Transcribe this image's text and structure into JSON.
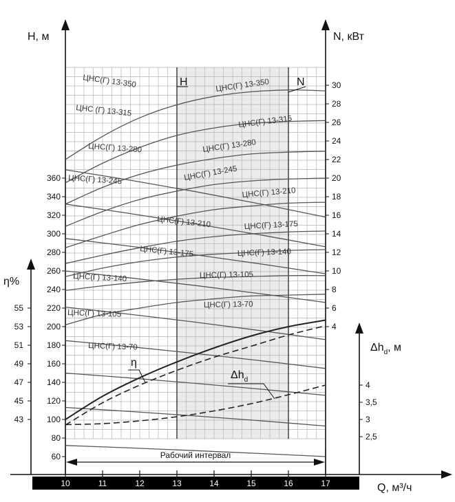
{
  "chart_data": {
    "type": "line",
    "x_axis": {
      "title": "Q, м³/ч",
      "range": [
        10,
        17
      ],
      "ticks": [
        "10",
        "11",
        "12",
        "13",
        "14",
        "15",
        "16",
        "17"
      ]
    },
    "h_axis": {
      "title": "H, м",
      "range": [
        80,
        380
      ],
      "ticks": [
        "60",
        "80",
        "100",
        "120",
        "140",
        "160",
        "180",
        "200",
        "220",
        "240",
        "260",
        "280",
        "300",
        "320",
        "340",
        "360"
      ]
    },
    "n_axis": {
      "title": "N, кВт",
      "range": [
        4,
        30
      ],
      "ticks": [
        "4",
        "6",
        "8",
        "10",
        "12",
        "14",
        "16",
        "18",
        "20",
        "22",
        "24",
        "26",
        "28",
        "30"
      ]
    },
    "eta_axis": {
      "title": "η%",
      "ticks": [
        "43",
        "45",
        "47",
        "49",
        "51",
        "53",
        "55"
      ]
    },
    "dh_axis": {
      "title": "Δh",
      "title_sub": "d",
      "title_unit": ", м",
      "ticks": [
        "2,5",
        "3",
        "3,5",
        "4"
      ]
    },
    "working_interval": {
      "label": "Рабочий интервал",
      "range": [
        13,
        16
      ]
    },
    "marker_labels": {
      "h": "H",
      "n": "N",
      "eta": "η",
      "dh": "Δh",
      "dh_sub": "d"
    },
    "head_curves": [
      {
        "name": "ЦНС(Г) 13-350",
        "x": [
          10,
          17
        ],
        "y": [
          369,
          318
        ]
      },
      {
        "name": "ЦНС (Г) 13-315",
        "x": [
          10,
          17
        ],
        "y": [
          332,
          286
        ]
      },
      {
        "name": "ЦНС(Г) 13-280",
        "x": [
          10,
          17
        ],
        "y": [
          295,
          257
        ]
      },
      {
        "name": "ЦНС(Г) 13-245",
        "x": [
          10,
          17
        ],
        "y": [
          260,
          226
        ]
      },
      {
        "name": "ЦНС(Г) 13-210",
        "x": [
          10,
          17
        ],
        "y": [
          221,
          186
        ]
      },
      {
        "name": "ЦНС(Г) 13-175",
        "x": [
          10,
          17
        ],
        "y": [
          185,
          155
        ]
      },
      {
        "name": "ЦНС(Г) 13-140",
        "x": [
          10,
          17
        ],
        "y": [
          150,
          126
        ]
      },
      {
        "name": "ЦНС(Г) 13-105",
        "x": [
          10,
          17
        ],
        "y": [
          113,
          93
        ]
      },
      {
        "name": "ЦНС(Г) 13-70",
        "x": [
          10,
          17
        ],
        "y": [
          72,
          60
        ]
      }
    ],
    "power_curves": [
      {
        "name": "ЦНС(Г) 13-350",
        "x": [
          10,
          11,
          12,
          13,
          14,
          15,
          16,
          17
        ],
        "y": [
          22.0,
          24.5,
          26.5,
          27.9,
          28.8,
          29.3,
          29.5,
          29.4
        ]
      },
      {
        "name": "ЦНС(Г) 13-315",
        "x": [
          10,
          11,
          12,
          13,
          14,
          15,
          16,
          17
        ],
        "y": [
          19.5,
          21.6,
          23.3,
          24.6,
          25.4,
          25.9,
          26.1,
          26.2
        ]
      },
      {
        "name": "ЦНС(Г) 13-280",
        "x": [
          10,
          11,
          12,
          13,
          14,
          15,
          16,
          17
        ],
        "y": [
          17.2,
          19.0,
          20.4,
          21.4,
          22.1,
          22.6,
          22.8,
          22.9
        ]
      },
      {
        "name": "ЦНС(Г) 13-245",
        "x": [
          10,
          11,
          12,
          13,
          14,
          15,
          16,
          17
        ],
        "y": [
          14.8,
          16.4,
          17.7,
          18.6,
          19.3,
          19.7,
          19.9,
          20.0
        ]
      },
      {
        "name": "ЦНС(Г) 13-210",
        "x": [
          10,
          11,
          12,
          13,
          14,
          15,
          16,
          17
        ],
        "y": [
          12.5,
          13.8,
          15.0,
          15.9,
          16.6,
          17.0,
          17.3,
          17.4
        ]
      },
      {
        "name": "ЦНС(Г) 13-175",
        "x": [
          10,
          11,
          12,
          13,
          14,
          15,
          16,
          17
        ],
        "y": [
          10.8,
          11.7,
          12.5,
          13.2,
          13.7,
          14.0,
          14.2,
          14.3
        ]
      },
      {
        "name": "ЦНС(Г) 13-140",
        "x": [
          10,
          11,
          12,
          13,
          14,
          15,
          16,
          17
        ],
        "y": [
          9.4,
          10.3,
          11.0,
          11.5,
          11.8,
          12.0,
          12.2,
          12.3
        ]
      },
      {
        "name": "ЦНС(Г) 13-105",
        "x": [
          10,
          11,
          12,
          13,
          14,
          15,
          16,
          17
        ],
        "y": [
          7.9,
          8.4,
          8.8,
          9.1,
          9.3,
          9.4,
          9.5,
          9.5
        ]
      },
      {
        "name": "ЦНС(Г) 13-70",
        "x": [
          10,
          11,
          12,
          13,
          14,
          15,
          16,
          17
        ],
        "y": [
          4.2,
          5.3,
          6.0,
          6.6,
          7.0,
          7.3,
          7.4,
          7.5
        ]
      }
    ],
    "efficiency_curve": {
      "x": [
        10,
        11,
        12,
        13,
        14,
        15,
        16,
        17
      ],
      "y": [
        43.0,
        45.5,
        47.5,
        49.2,
        50.7,
        52.0,
        53.0,
        53.7
      ]
    },
    "efficiency_dashed": {
      "x": [
        10,
        11,
        12,
        13,
        14,
        15,
        16,
        17
      ],
      "y": [
        42.4,
        44.8,
        46.7,
        48.3,
        49.7,
        50.9,
        52.1,
        53.1
      ]
    },
    "npsh_curve": {
      "x": [
        10,
        11,
        12,
        13,
        14,
        15,
        16,
        17
      ],
      "y": [
        2.85,
        2.88,
        2.96,
        3.08,
        3.25,
        3.46,
        3.72,
        4.0
      ]
    }
  }
}
